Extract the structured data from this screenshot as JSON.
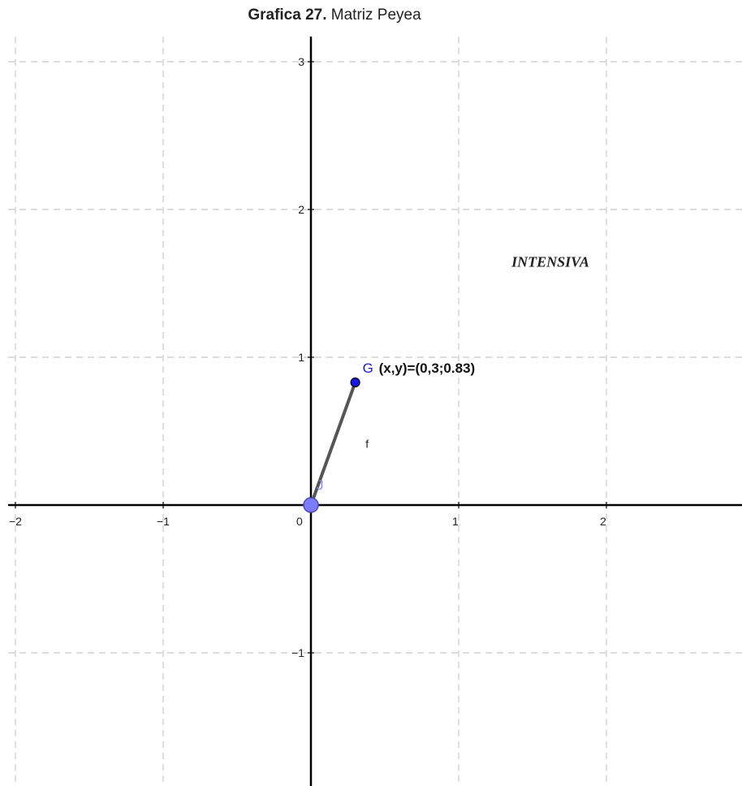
{
  "title": {
    "bold": "Grafica 27.",
    "rest": " Matriz Peyea"
  },
  "chart_data": {
    "type": "scatter",
    "xlim": [
      -2,
      2.9
    ],
    "ylim": [
      -1.95,
      3.2
    ],
    "x_ticks": [
      -2,
      -1,
      0,
      1,
      2
    ],
    "y_ticks": [
      -1,
      1,
      2,
      3
    ],
    "x_tick_labels": [
      "−2",
      "−1",
      "0",
      "1",
      "2"
    ],
    "y_tick_labels": [
      "−1",
      "1",
      "2",
      "3"
    ],
    "grid": true,
    "region_label": {
      "text": "INTENSIVA",
      "x": 1.5,
      "y": 1.65
    },
    "points": [
      {
        "name": "J",
        "x": 0,
        "y": 0,
        "color": "#7b7bff"
      },
      {
        "name": "G",
        "x": 0.3,
        "y": 0.83,
        "color": "#1414e6"
      }
    ],
    "segment": {
      "name": "f",
      "from": [
        0,
        0
      ],
      "to": [
        0.3,
        0.83
      ],
      "color": "#555555"
    },
    "annotation": "(x,y)=(0,3;0.83)"
  }
}
